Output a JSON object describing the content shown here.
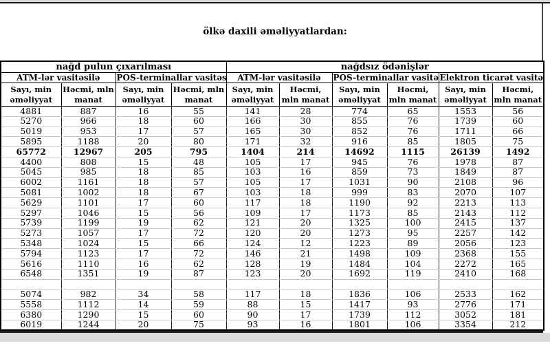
{
  "title": "ölkə daxili əməliyyatlardan:",
  "table": {
    "group_headers": [
      {
        "label": "nağd pulun çıxarılması",
        "colspan": 4
      },
      {
        "label": "nağdsız ödənişlər",
        "colspan": 6
      }
    ],
    "channel_headers": [
      {
        "label": "ATM-lər vasitəsilə"
      },
      {
        "label": "POS-terminallar vasitəsilə"
      },
      {
        "label": "ATM-lər vasitəsilə"
      },
      {
        "label": "POS-terminallar vasitəsilə"
      },
      {
        "label": "Elektron ticarət vasitəsilə"
      }
    ],
    "measure_headers": {
      "count": "Sayı, min əməliyyat",
      "volume": "Həcmi, mln manat"
    },
    "bold_row_index": 4,
    "rows": [
      [
        "4881",
        "887",
        "16",
        "55",
        "141",
        "28",
        "774",
        "65",
        "1553",
        "56"
      ],
      [
        "5270",
        "966",
        "18",
        "60",
        "166",
        "30",
        "855",
        "76",
        "1739",
        "60"
      ],
      [
        "5019",
        "953",
        "17",
        "57",
        "165",
        "30",
        "852",
        "76",
        "1711",
        "66"
      ],
      [
        "5895",
        "1188",
        "20",
        "80",
        "171",
        "32",
        "916",
        "85",
        "1805",
        "75"
      ],
      [
        "65772",
        "12967",
        "205",
        "795",
        "1404",
        "214",
        "14692",
        "1115",
        "26139",
        "1492"
      ],
      [
        "4400",
        "808",
        "15",
        "48",
        "105",
        "17",
        "945",
        "76",
        "1978",
        "87"
      ],
      [
        "5045",
        "985",
        "18",
        "85",
        "103",
        "16",
        "859",
        "73",
        "1849",
        "87"
      ],
      [
        "6002",
        "1161",
        "18",
        "57",
        "105",
        "17",
        "1031",
        "90",
        "2108",
        "96"
      ],
      [
        "5081",
        "1002",
        "18",
        "67",
        "103",
        "18",
        "999",
        "83",
        "2070",
        "107"
      ],
      [
        "5629",
        "1101",
        "17",
        "60",
        "117",
        "18",
        "1190",
        "92",
        "2213",
        "113"
      ],
      [
        "5297",
        "1046",
        "15",
        "56",
        "109",
        "17",
        "1173",
        "85",
        "2143",
        "112"
      ],
      [
        "5739",
        "1199",
        "19",
        "62",
        "121",
        "20",
        "1325",
        "100",
        "2415",
        "137"
      ],
      [
        "5273",
        "1057",
        "17",
        "72",
        "120",
        "20",
        "1273",
        "95",
        "2257",
        "142"
      ],
      [
        "5348",
        "1024",
        "15",
        "66",
        "124",
        "12",
        "1223",
        "89",
        "2056",
        "123"
      ],
      [
        "5794",
        "1123",
        "17",
        "72",
        "146",
        "21",
        "1498",
        "109",
        "2368",
        "155"
      ],
      [
        "5616",
        "1110",
        "16",
        "62",
        "128",
        "19",
        "1484",
        "104",
        "2272",
        "165"
      ],
      [
        "6548",
        "1351",
        "19",
        "87",
        "123",
        "20",
        "1692",
        "119",
        "2410",
        "168"
      ],
      [
        "",
        "",
        "",
        "",
        "",
        "",
        "",
        "",
        "",
        ""
      ],
      [
        "5074",
        "982",
        "34",
        "58",
        "117",
        "18",
        "1836",
        "106",
        "2533",
        "162"
      ],
      [
        "5558",
        "1112",
        "14",
        "59",
        "88",
        "15",
        "1417",
        "93",
        "2776",
        "171"
      ],
      [
        "6380",
        "1290",
        "15",
        "60",
        "90",
        "17",
        "1739",
        "112",
        "3052",
        "181"
      ],
      [
        "6019",
        "1244",
        "20",
        "75",
        "93",
        "16",
        "1801",
        "106",
        "3354",
        "212"
      ]
    ]
  },
  "colors": {
    "border": "#000000",
    "gridline": "#c9c9c9",
    "frame_strip": "#d9d9d9"
  }
}
